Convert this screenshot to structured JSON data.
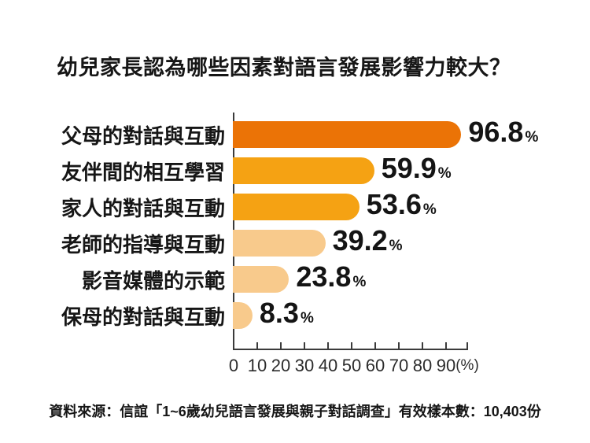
{
  "title": "幼兒家長認為哪些因素對語言發展影響力較大？",
  "source": "資料來源：信誼「1~6歲幼兒語言發展與親子對話調查」有效樣本數：10,403份",
  "colors": {
    "bar_strong": "#EB7306",
    "bar_medium": "#F5A213",
    "bar_light": "#F8CA8C",
    "axis": "#3b3b3b",
    "text": "#161616"
  },
  "chart_data": {
    "type": "bar",
    "orientation": "horizontal",
    "title": "幼兒家長認為哪些因素對語言發展影響力較大？",
    "unit": "%",
    "categories": [
      "父母的對話與互動",
      "友伴間的相互學習",
      "家人的對話與互動",
      "老師的指導與互動",
      "影音媒體的示範",
      "保母的對話與互動"
    ],
    "values": [
      96.8,
      59.9,
      53.6,
      39.2,
      23.8,
      8.3
    ],
    "rows": [
      {
        "label": "父母的對話與互動",
        "value": 96.8,
        "value_label": "96.8",
        "color": "#EB7306"
      },
      {
        "label": "友伴間的相互學習",
        "value": 59.9,
        "value_label": "59.9",
        "color": "#F5A213"
      },
      {
        "label": "家人的對話與互動",
        "value": 53.6,
        "value_label": "53.6",
        "color": "#F5A213"
      },
      {
        "label": "老師的指導與互動",
        "value": 39.2,
        "value_label": "39.2",
        "color": "#F8CA8C"
      },
      {
        "label": "影音媒體的示範",
        "value": 23.8,
        "value_label": "23.8",
        "color": "#F8CA8C"
      },
      {
        "label": "保母的對話與互動",
        "value": 8.3,
        "value_label": "8.3",
        "color": "#F8CA8C"
      }
    ],
    "x_ticks": [
      "0",
      "10",
      "20",
      "30",
      "40",
      "50",
      "60",
      "70",
      "80",
      "90"
    ],
    "x_axis_suffix": "(%)",
    "xlim": [
      0,
      100
    ],
    "grid": false,
    "legend": false
  }
}
